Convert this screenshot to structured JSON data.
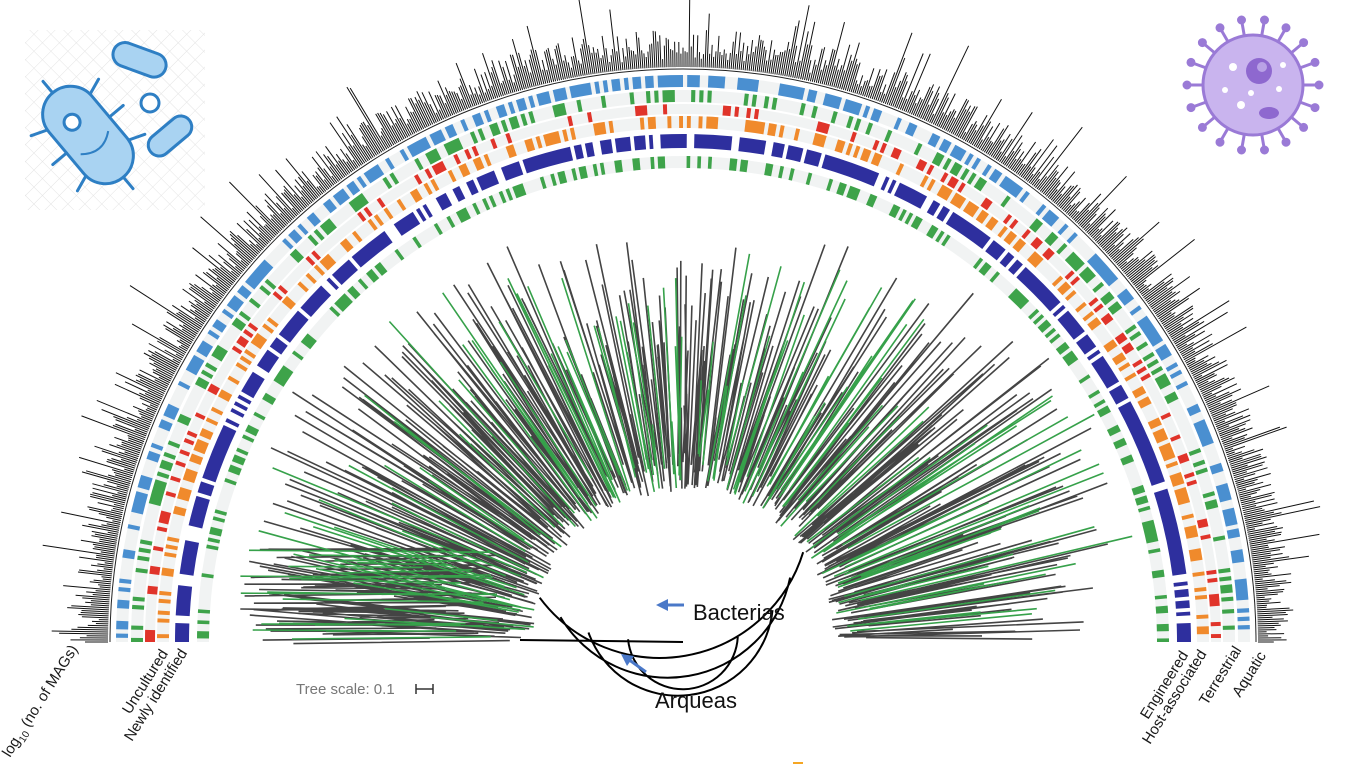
{
  "labels": {
    "bacterias": "Bacterias",
    "arqueas": "Arqueas",
    "tree_scale": "Tree scale: 0.1"
  },
  "ring_labels_left": {
    "mags": "log",
    "mags_sub": "10",
    "mags_rest": " (no. of MAGs)",
    "uncultured": "Uncultured",
    "newly_identified": "Newly identified"
  },
  "ring_labels_right": {
    "engineered": "Engineered",
    "host_associated": "Host-associated",
    "terrestrial": "Terrestrial",
    "aquatic": "Aquatic"
  },
  "colors": {
    "aquatic": "#4a8fd0",
    "terrestrial": "#3ea34a",
    "host_associated": "#e0342a",
    "engineered": "#f08a2c",
    "uncultured": "#2e2f9e",
    "newly_identified": "#3ea34a",
    "histogram": "#111111",
    "branch": "#444444",
    "branch_highlight": "#36a14a",
    "arrow": "#4a78c8"
  },
  "icons": {
    "bacteria": "bacteria-cluster-icon",
    "virus": "virus-cell-icon"
  }
}
